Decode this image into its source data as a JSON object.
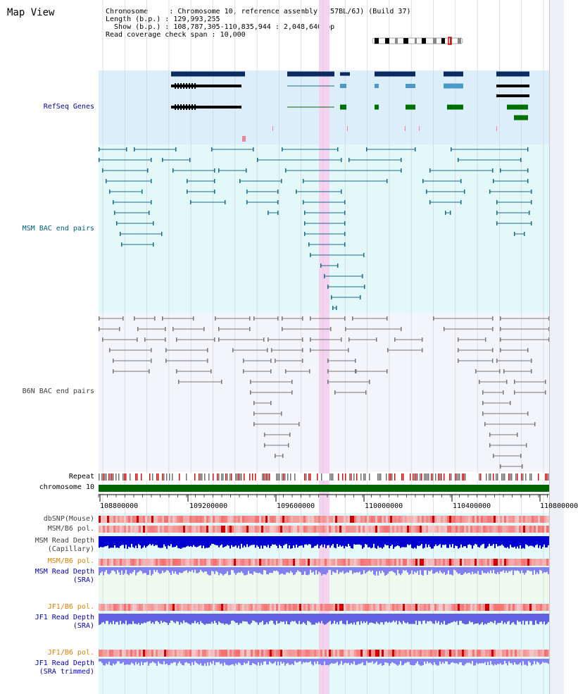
{
  "header": {
    "title": "Map View",
    "chromosome_key": "Chromosome    ",
    "chromosome_val": "Chromosome 10, reference assembly (C57BL/6J) (Build 37)",
    "length_key": "Length (b.p.)",
    "length_val": "129,993,255",
    "show_key": "  Show (b.p.)",
    "show_val": "108,787,305-110,835,944 : 2,048,640 bp",
    "coverage_key": "Read coverage check span",
    "coverage_val": "10,000"
  },
  "tracks": {
    "refseq": "RefSeq Genes",
    "msm_bac": "MSM BAC end pairs",
    "b6n_bac": "B6N BAC end pairs",
    "repeat": "Repeat",
    "chromosome": "chromosome 10",
    "dbsnp": "dbSNP(Mouse)",
    "msm_pol1": "MSM/B6 pol.",
    "msm_depth_cap_1": "MSM Read Depth",
    "msm_depth_cap_2": "(Capillary)",
    "msm_pol2": "MSM/B6 pol.",
    "msm_depth_sra_1": "MSM Read Depth",
    "msm_depth_sra_2": "(SRA)",
    "jf1_pol1": "JF1/B6 pol.",
    "jf1_depth_sra_1": "JF1 Read Depth",
    "jf1_depth_sra_2": "(SRA)",
    "jf1_pol2": "JF1/B6 pol.",
    "jf1_depth_trim_1": "JF1 Read Depth",
    "jf1_depth_trim_2": "(SRA trimmed)"
  },
  "axis": {
    "ticks": [
      "108800000",
      "109200000",
      "109600000",
      "110000000",
      "110400000",
      "110800000"
    ]
  },
  "colors": {
    "refseq_bg": "#dbeefa",
    "msm_bg": "#e3f8f8",
    "b6n_bg": "#f4f5fa",
    "lower_bg": "#e4fafa",
    "highlight": "#f5d3f0",
    "refseq_label": "#0000a0",
    "msm_label": "#006080",
    "b6n_label": "#404040",
    "pol_orange": "#e08000",
    "depth_blue": "#0000c0",
    "chromosome_green": "#006400"
  }
}
